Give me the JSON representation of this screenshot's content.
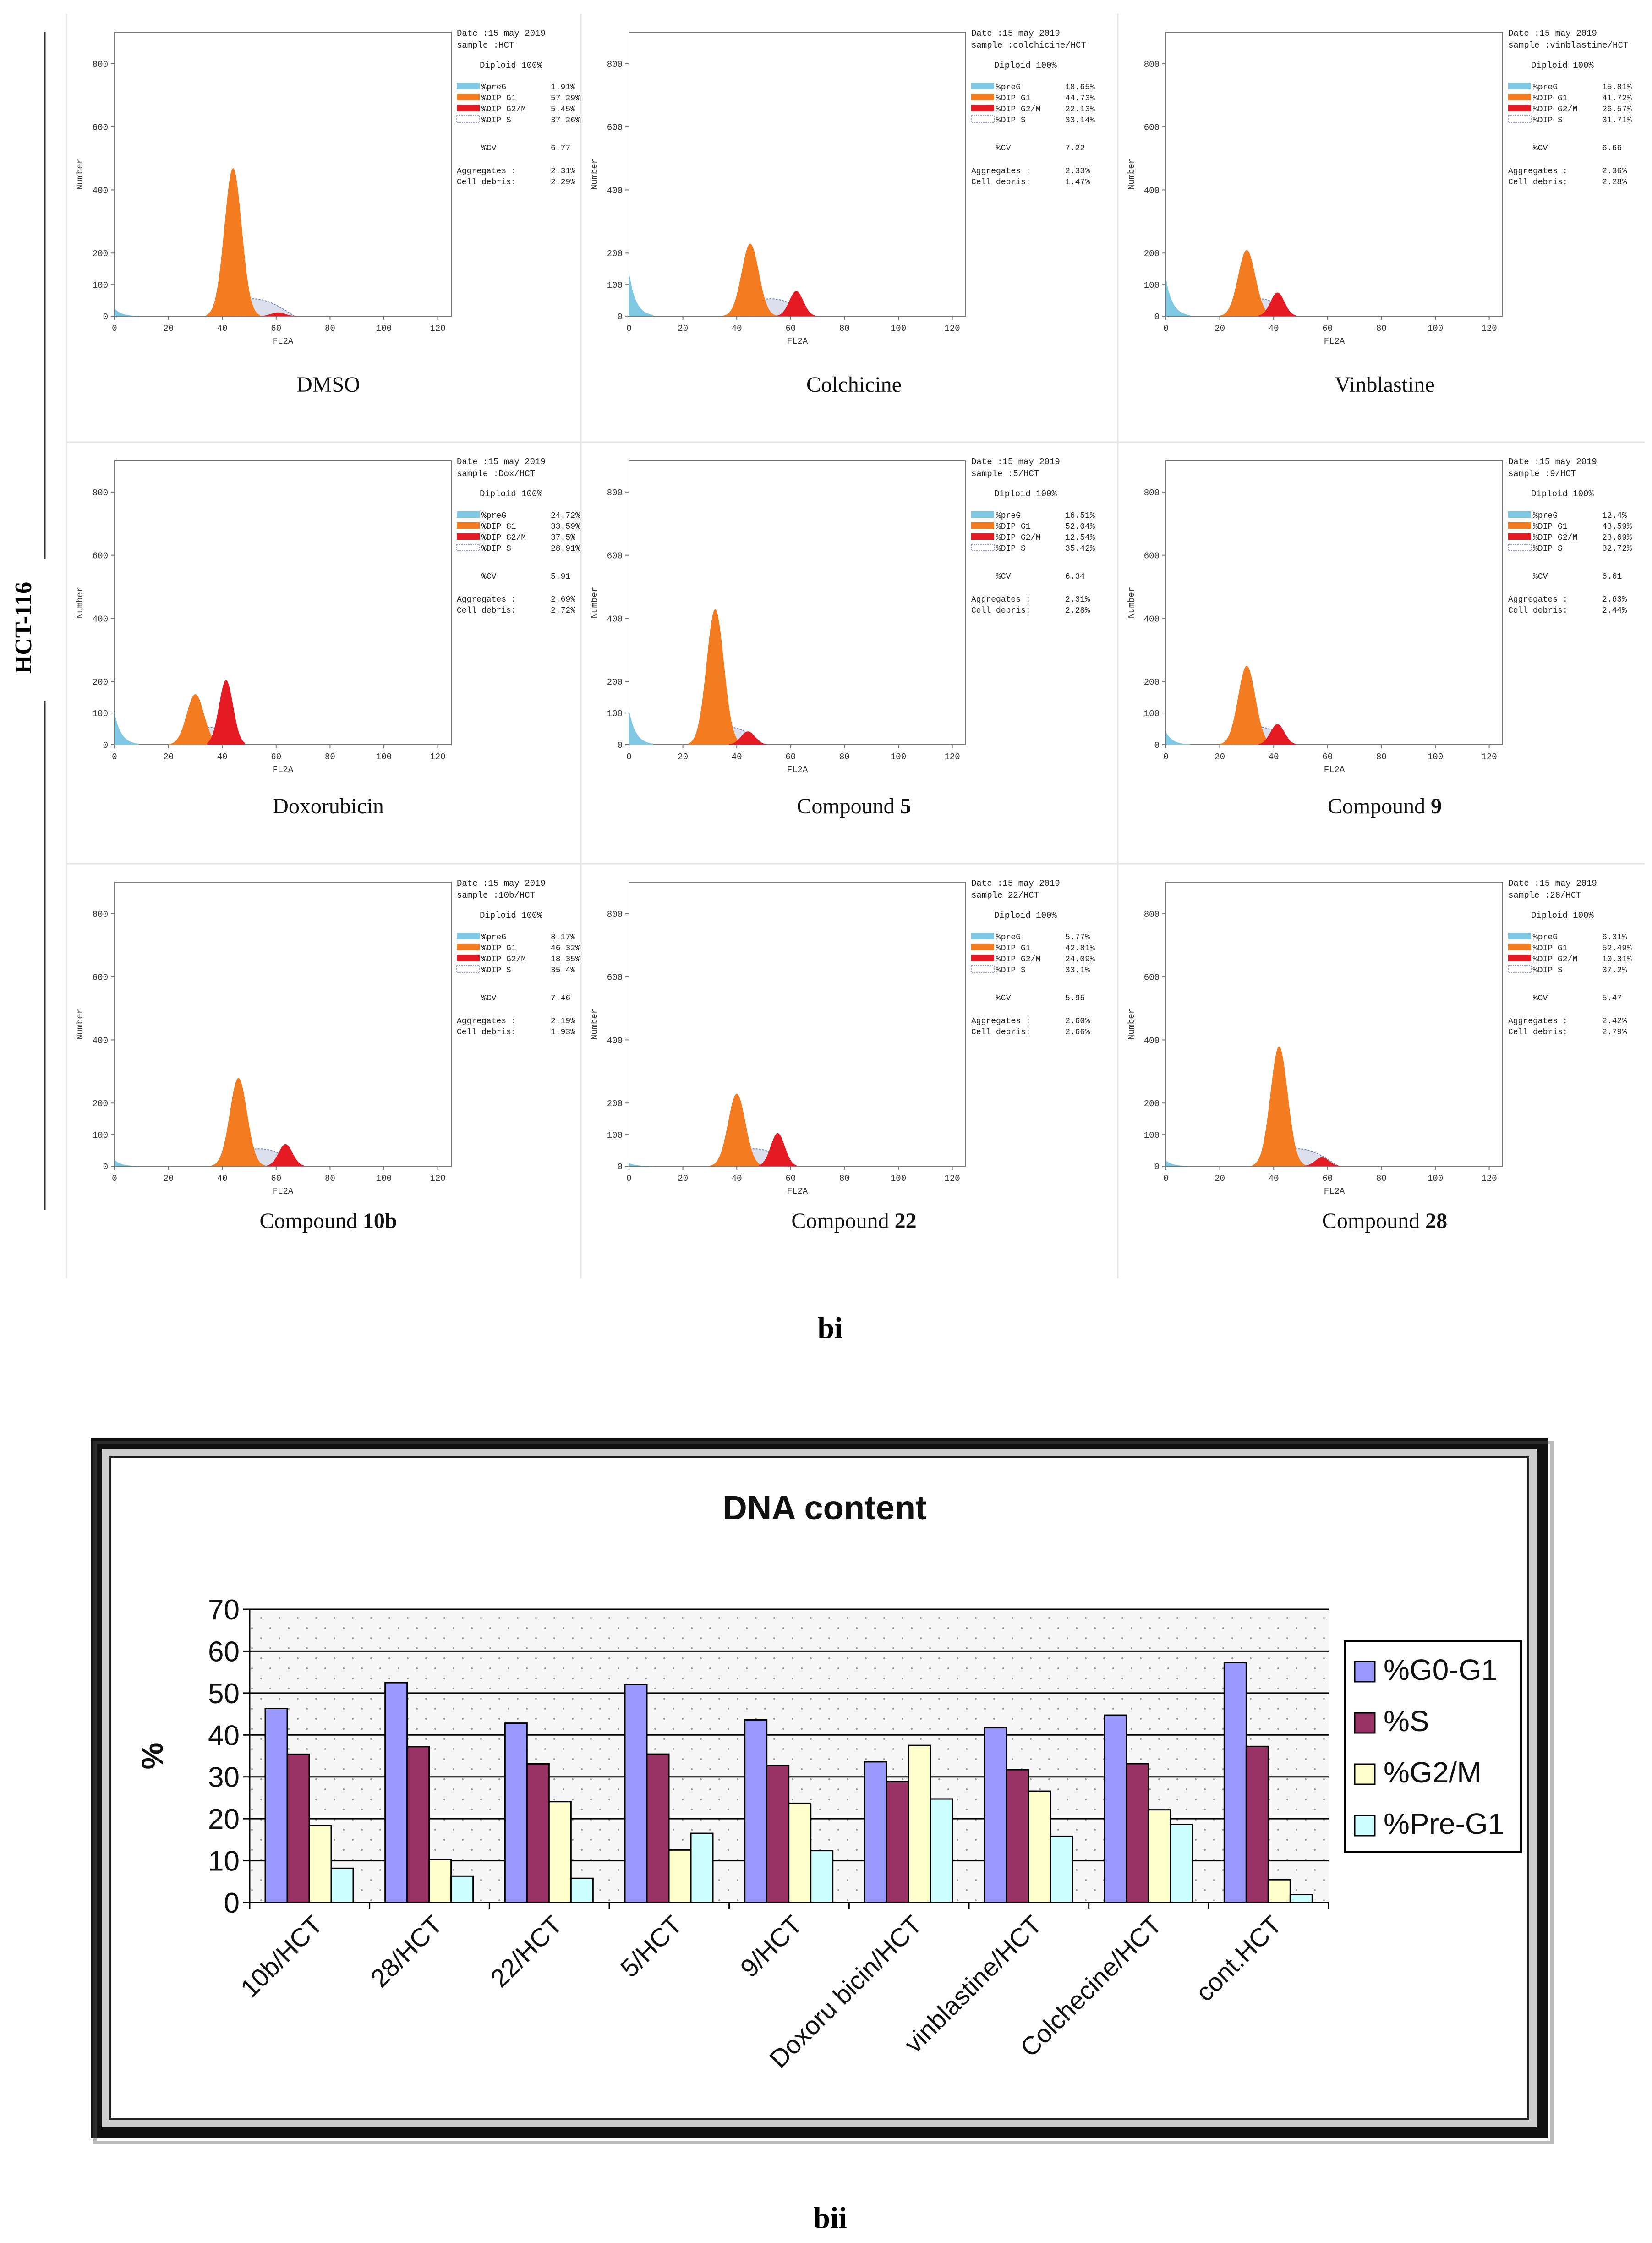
{
  "figure": {
    "side_label": "HCT-116",
    "panel_bi_label": "bi",
    "panel_bii_label": "bii"
  },
  "colors": {
    "preG": "#7ec8e3",
    "g1": "#f47c20",
    "g2m": "#e51b23",
    "s": "#9aa6c8",
    "bar_g0g1": "#9999ff",
    "bar_s": "#993366",
    "bar_g2m": "#ffffcc",
    "bar_preg1": "#ccffff"
  },
  "histograms": [
    {
      "caption": "DMSO",
      "caption_bold": "",
      "date": "Date :15 may 2019",
      "sample": "sample :HCT",
      "diploid": "Diploid 100%",
      "stats": [
        {
          "label": "%preG",
          "value": "1.91%"
        },
        {
          "label": "%DIP G1",
          "value": "57.29%"
        },
        {
          "label": "%DIP G2/M",
          "value": "5.45%"
        },
        {
          "label": "%DIP S",
          "value": "37.26%"
        }
      ],
      "cv": "6.77",
      "aggregates": "2.31%",
      "debris": "2.29%",
      "g1_pos": 44,
      "g1_h": 470,
      "g2_h": 12,
      "pre_h": 25
    },
    {
      "caption": "Colchicine",
      "caption_bold": "",
      "date": "Date :15 may 2019",
      "sample": "sample :colchicine/HCT",
      "diploid": "Diploid 100%",
      "stats": [
        {
          "label": "%preG",
          "value": "18.65%"
        },
        {
          "label": "%DIP G1",
          "value": "44.73%"
        },
        {
          "label": "%DIP G2/M",
          "value": "22.13%"
        },
        {
          "label": "%DIP S",
          "value": "33.14%"
        }
      ],
      "cv": "7.22",
      "aggregates": "2.33%",
      "debris": "1.47%",
      "g1_pos": 45,
      "g1_h": 230,
      "g2_h": 80,
      "pre_h": 140
    },
    {
      "caption": "Vinblastine",
      "caption_bold": "",
      "date": "Date :15 may 2019",
      "sample": "sample :vinblastine/HCT",
      "diploid": "Diploid 100%",
      "stats": [
        {
          "label": "%preG",
          "value": "15.81%"
        },
        {
          "label": "%DIP G1",
          "value": "41.72%"
        },
        {
          "label": "%DIP G2/M",
          "value": "26.57%"
        },
        {
          "label": "%DIP S",
          "value": "31.71%"
        }
      ],
      "cv": "6.66",
      "aggregates": "2.36%",
      "debris": "2.28%",
      "g1_pos": 30,
      "g1_h": 210,
      "g2_h": 75,
      "pre_h": 120
    },
    {
      "caption": "Doxorubicin",
      "caption_bold": "",
      "date": "Date :15 may 2019",
      "sample": "sample :Dox/HCT",
      "diploid": "Diploid 100%",
      "stats": [
        {
          "label": "%preG",
          "value": "24.72%"
        },
        {
          "label": "%DIP G1",
          "value": "33.59%"
        },
        {
          "label": "%DIP G2/M",
          "value": "37.5%"
        },
        {
          "label": "%DIP S",
          "value": "28.91%"
        }
      ],
      "cv": "5.91",
      "aggregates": "2.69%",
      "debris": "2.72%",
      "g1_pos": 30,
      "g1_h": 160,
      "g2_h": 205,
      "pre_h": 100
    },
    {
      "caption": "Compound ",
      "caption_bold": "5",
      "date": "Date :15 may 2019",
      "sample": "sample :5/HCT",
      "diploid": "Diploid 100%",
      "stats": [
        {
          "label": "%preG",
          "value": "16.51%"
        },
        {
          "label": "%DIP G1",
          "value": "52.04%"
        },
        {
          "label": "%DIP G2/M",
          "value": "12.54%"
        },
        {
          "label": "%DIP S",
          "value": "35.42%"
        }
      ],
      "cv": "6.34",
      "aggregates": "2.31%",
      "debris": "2.28%",
      "g1_pos": 32,
      "g1_h": 430,
      "g2_h": 42,
      "pre_h": 110
    },
    {
      "caption": "Compound ",
      "caption_bold": "9",
      "date": "Date :15 may 2019",
      "sample": "sample :9/HCT",
      "diploid": "Diploid 100%",
      "stats": [
        {
          "label": "%preG",
          "value": "12.4%"
        },
        {
          "label": "%DIP G1",
          "value": "43.59%"
        },
        {
          "label": "%DIP G2/M",
          "value": "23.69%"
        },
        {
          "label": "%DIP S",
          "value": "32.72%"
        }
      ],
      "cv": "6.61",
      "aggregates": "2.63%",
      "debris": "2.44%",
      "g1_pos": 30,
      "g1_h": 250,
      "g2_h": 65,
      "pre_h": 40
    },
    {
      "caption": "Compound ",
      "caption_bold": "10b",
      "date": "Date :15 may 2019",
      "sample": "sample :10b/HCT",
      "diploid": "Diploid 100%",
      "stats": [
        {
          "label": "%preG",
          "value": "8.17%"
        },
        {
          "label": "%DIP G1",
          "value": "46.32%"
        },
        {
          "label": "%DIP G2/M",
          "value": "18.35%"
        },
        {
          "label": "%DIP S",
          "value": "35.4%"
        }
      ],
      "cv": "7.46",
      "aggregates": "2.19%",
      "debris": "1.93%",
      "g1_pos": 46,
      "g1_h": 280,
      "g2_h": 70,
      "pre_h": 20
    },
    {
      "caption": "Compound ",
      "caption_bold": "22",
      "date": "Date :15 may 2019",
      "sample": "sample 22/HCT",
      "diploid": "Diploid 100%",
      "stats": [
        {
          "label": "%preG",
          "value": "5.77%"
        },
        {
          "label": "%DIP G1",
          "value": "42.81%"
        },
        {
          "label": "%DIP G2/M",
          "value": "24.09%"
        },
        {
          "label": "%DIP S",
          "value": "33.1%"
        }
      ],
      "cv": "5.95",
      "aggregates": "2.60%",
      "debris": "2.66%",
      "g1_pos": 40,
      "g1_h": 230,
      "g2_h": 105,
      "pre_h": 10
    },
    {
      "caption": "Compound ",
      "caption_bold": "28",
      "date": "Date :15 may 2019",
      "sample": "sample :28/HCT",
      "diploid": "Diploid 100%",
      "stats": [
        {
          "label": "%preG",
          "value": "6.31%"
        },
        {
          "label": "%DIP G1",
          "value": "52.49%"
        },
        {
          "label": "%DIP G2/M",
          "value": "10.31%"
        },
        {
          "label": "%DIP S",
          "value": "37.2%"
        }
      ],
      "cv": "5.47",
      "aggregates": "2.42%",
      "debris": "2.79%",
      "g1_pos": 42,
      "g1_h": 380,
      "g2_h": 28,
      "pre_h": 18
    }
  ],
  "histogram_axes": {
    "y_label": "Number",
    "x_label": "FL2A",
    "y_ticks": [
      "0",
      "100",
      "200",
      "400",
      "600",
      "800"
    ],
    "x_ticks": [
      "0",
      "20",
      "40",
      "60",
      "80",
      "100",
      "120"
    ],
    "cv_label": "%CV",
    "aggregates_label": "Aggregates :",
    "debris_label": "Cell debris:"
  },
  "chart_data": {
    "type": "bar",
    "title": "DNA content",
    "xlabel": "",
    "ylabel": "%",
    "ylim": [
      0,
      70
    ],
    "yticks": [
      0,
      10,
      20,
      30,
      40,
      50,
      60,
      70
    ],
    "categories": [
      "10b/HCT",
      "28/HCT",
      "22/HCT",
      "5/HCT",
      "9/HCT",
      "Doxoru bicin/HCT",
      "vinblastine/HCT",
      "Colchecine/HCT",
      "cont.HCT"
    ],
    "series": [
      {
        "name": "%G0-G1",
        "values": [
          46.32,
          52.49,
          42.81,
          52.04,
          43.59,
          33.59,
          41.72,
          44.73,
          57.29
        ]
      },
      {
        "name": "%S",
        "values": [
          35.4,
          37.2,
          33.1,
          35.42,
          32.72,
          28.91,
          31.71,
          33.14,
          37.26
        ]
      },
      {
        "name": "%G2/M",
        "values": [
          18.35,
          10.31,
          24.09,
          12.54,
          23.69,
          37.5,
          26.57,
          22.13,
          5.45
        ]
      },
      {
        "name": "%Pre-G1",
        "values": [
          8.17,
          6.31,
          5.77,
          16.51,
          12.4,
          24.72,
          15.81,
          18.65,
          1.91
        ]
      }
    ],
    "legend_position": "right"
  }
}
